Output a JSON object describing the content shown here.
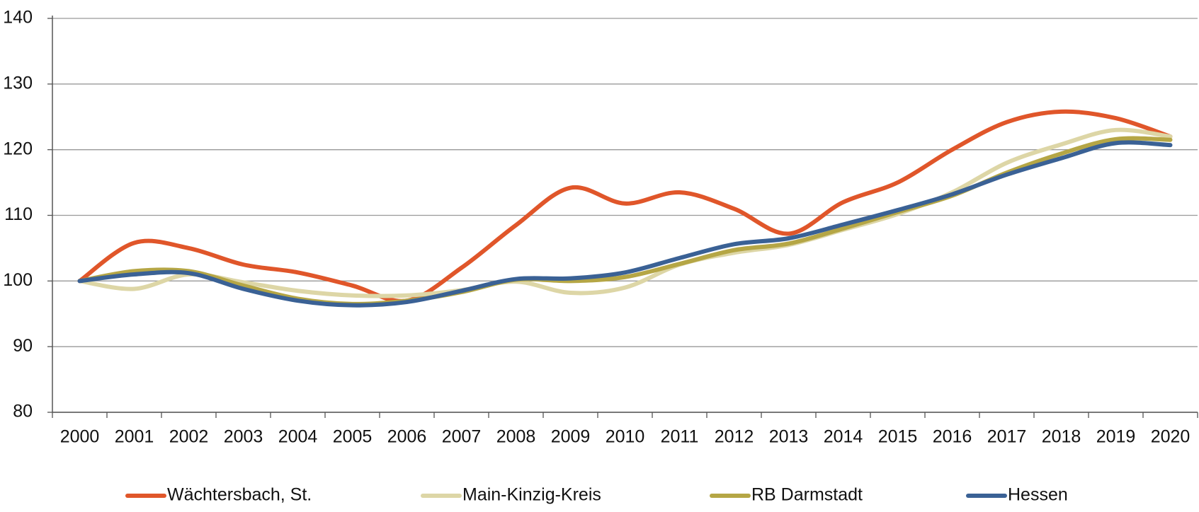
{
  "chart_data": {
    "type": "line",
    "categories": [
      "2000",
      "2001",
      "2002",
      "2003",
      "2004",
      "2005",
      "2006",
      "2007",
      "2008",
      "2009",
      "2010",
      "2011",
      "2012",
      "2013",
      "2014",
      "2015",
      "2016",
      "2017",
      "2018",
      "2019",
      "2020"
    ],
    "series": [
      {
        "name": "Wächtersbach, St.",
        "color": "#e0562a",
        "values": [
          100,
          105.8,
          105,
          102.5,
          101.3,
          99.3,
          97,
          102,
          108.5,
          114.2,
          111.8,
          113.5,
          111,
          107.2,
          112,
          115,
          120,
          124.2,
          125.8,
          124.8,
          122
        ]
      },
      {
        "name": "Main-Kinzig-Kreis",
        "color": "#ddd6a6",
        "values": [
          100,
          98.8,
          101,
          99.8,
          98.5,
          97.8,
          97.8,
          98.6,
          99.9,
          98.2,
          99,
          102.5,
          104.3,
          105.5,
          107.8,
          110.2,
          113.5,
          118,
          120.8,
          123,
          122
        ]
      },
      {
        "name": "RB Darmstadt",
        "color": "#b5a645",
        "values": [
          100,
          101.5,
          101.5,
          99.3,
          97.3,
          96.5,
          97,
          98.3,
          100.2,
          100,
          100.6,
          102.6,
          104.7,
          105.7,
          108,
          110.5,
          113,
          116.5,
          119.4,
          121.6,
          121.5
        ]
      },
      {
        "name": "Hessen",
        "color": "#3a6195",
        "values": [
          100,
          101,
          101.2,
          98.8,
          97,
          96.3,
          96.8,
          98.5,
          100.3,
          100.4,
          101.3,
          103.5,
          105.6,
          106.5,
          108.6,
          110.8,
          113.2,
          116.2,
          118.7,
          121,
          120.7
        ]
      }
    ],
    "ylim": [
      80,
      140
    ],
    "yticks": [
      80,
      90,
      100,
      110,
      120,
      130,
      140
    ],
    "grid": true,
    "legend": "bottom"
  }
}
